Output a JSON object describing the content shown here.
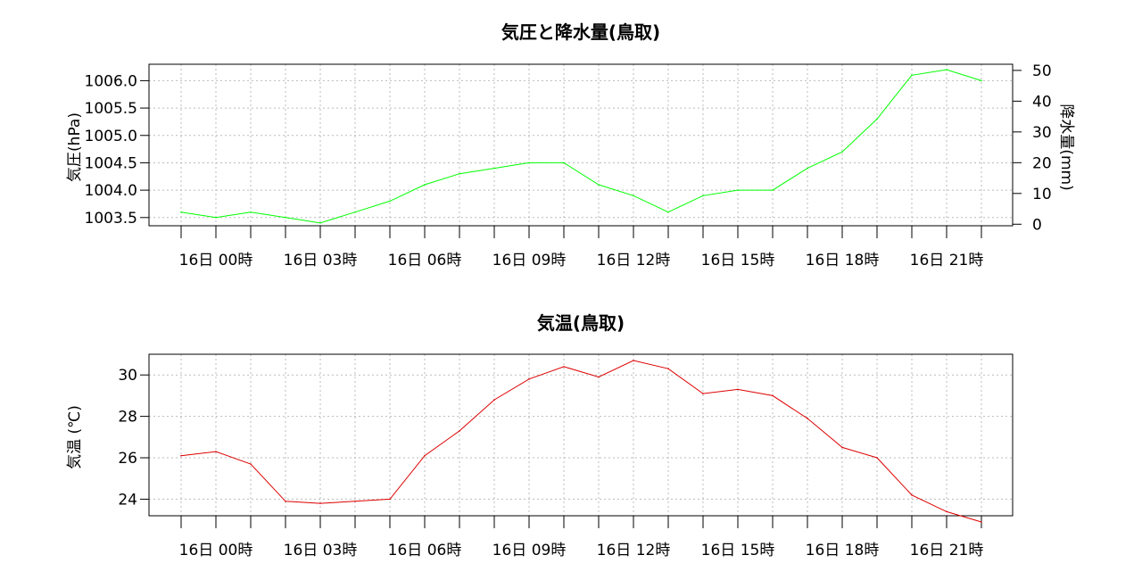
{
  "colors": {
    "pressure": "#00ff00",
    "temperature": "#dd0000"
  },
  "chart_data": [
    {
      "type": "line",
      "title": "気圧と降水量(鳥取)",
      "ylabel": "気圧(hPa)",
      "y2label": "降水量(mm)",
      "x_tick_labels": [
        "16日 00時",
        "16日 03時",
        "16日 06時",
        "16日 09時",
        "16日 12時",
        "16日 15時",
        "16日 18時",
        "16日 21時"
      ],
      "x_hours": [
        0,
        1,
        2,
        3,
        4,
        5,
        6,
        7,
        8,
        9,
        10,
        11,
        12,
        13,
        14,
        15,
        16,
        17,
        18,
        19,
        20,
        21,
        22,
        23
      ],
      "ylim": [
        1003.35,
        1006.3
      ],
      "y_ticks": [
        1003.5,
        1004.0,
        1004.5,
        1005.0,
        1005.5,
        1006.0
      ],
      "y_tick_labels": [
        "1003.5",
        "1004.0",
        "1004.5",
        "1005.0",
        "1005.5",
        "1006.0"
      ],
      "y2lim": [
        -0.5,
        52
      ],
      "y2_ticks": [
        0,
        10,
        20,
        30,
        40,
        50
      ],
      "y2_tick_labels": [
        "0",
        "10",
        "20",
        "30",
        "40",
        "50"
      ],
      "grid": true,
      "series": [
        {
          "values": [
            1003.6,
            1003.5,
            1003.6,
            1003.5,
            1003.4,
            1003.6,
            1003.8,
            1004.1,
            1004.3,
            1004.4,
            1004.5,
            1004.5,
            1004.1,
            1003.9,
            1003.6,
            1003.9,
            1004.0,
            1004.0,
            1004.4,
            1004.7,
            1005.3,
            1006.1,
            1006.2,
            1006.0
          ]
        }
      ]
    },
    {
      "type": "line",
      "title": "気温(鳥取)",
      "ylabel": "気温 (℃)",
      "x_tick_labels": [
        "16日 00時",
        "16日 03時",
        "16日 06時",
        "16日 09時",
        "16日 12時",
        "16日 15時",
        "16日 18時",
        "16日 21時"
      ],
      "x_hours": [
        0,
        1,
        2,
        3,
        4,
        5,
        6,
        7,
        8,
        9,
        10,
        11,
        12,
        13,
        14,
        15,
        16,
        17,
        18,
        19,
        20,
        21,
        22,
        23
      ],
      "ylim": [
        23.2,
        31.0
      ],
      "y_ticks": [
        24,
        26,
        28,
        30
      ],
      "y_tick_labels": [
        "24",
        "26",
        "28",
        "30"
      ],
      "grid": true,
      "series": [
        {
          "values": [
            26.1,
            26.3,
            25.7,
            23.9,
            23.8,
            23.9,
            24.0,
            26.1,
            27.3,
            28.8,
            29.8,
            30.4,
            29.9,
            30.7,
            30.3,
            29.1,
            29.3,
            29.0,
            27.9,
            26.5,
            26.0,
            24.2,
            23.4,
            22.9
          ]
        }
      ]
    }
  ]
}
